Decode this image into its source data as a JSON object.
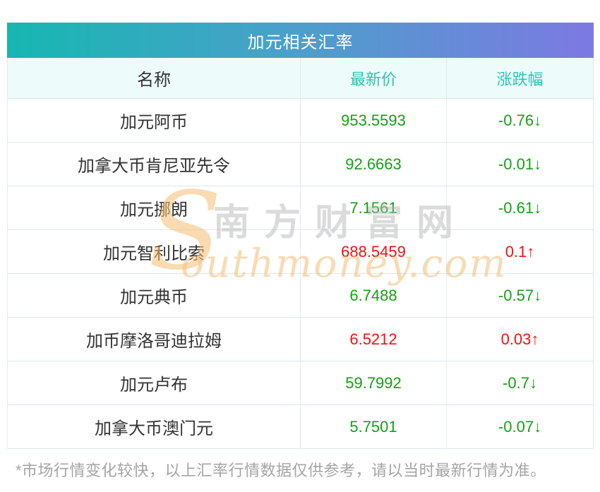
{
  "page": {
    "title": "加元相关汇率",
    "footnote": "*市场行情变化较快，以上汇率行情数据仅供参考，请以当时最新行情为准。"
  },
  "watermark": {
    "s_glyph": "S",
    "cjk_text": "南方财富网",
    "latin_text": "outhmoney.com"
  },
  "colors": {
    "up": "#f90e0e",
    "down": "#15a015",
    "title_gradient_start": "#16b7b1",
    "title_gradient_end": "#7d79e2",
    "header_text": "#2fc3b2",
    "header_bg": "#edfcfa",
    "border": "#dce6f1"
  },
  "table": {
    "columns": [
      "名称",
      "最新价",
      "涨跌幅"
    ],
    "rows": [
      {
        "name": "加元阿币",
        "price": "953.5593",
        "change": "-0.76↓",
        "direction": "down"
      },
      {
        "name": "加拿大币肯尼亚先令",
        "price": "92.6663",
        "change": "-0.01↓",
        "direction": "down"
      },
      {
        "name": "加元挪朗",
        "price": "7.1561",
        "change": "-0.61↓",
        "direction": "down"
      },
      {
        "name": "加元智利比索",
        "price": "688.5459",
        "change": "0.1↑",
        "direction": "up"
      },
      {
        "name": "加元典币",
        "price": "6.7488",
        "change": "-0.57↓",
        "direction": "down"
      },
      {
        "name": "加币摩洛哥迪拉姆",
        "price": "6.5212",
        "change": "0.03↑",
        "direction": "up"
      },
      {
        "name": "加元卢布",
        "price": "59.7992",
        "change": "-0.7↓",
        "direction": "down"
      },
      {
        "name": "加拿大币澳门元",
        "price": "5.7501",
        "change": "-0.07↓",
        "direction": "down"
      }
    ]
  },
  "chart_data": {
    "type": "table",
    "title": "加元相关汇率",
    "columns": [
      "名称",
      "最新价",
      "涨跌幅"
    ],
    "rows": [
      [
        "加元阿币",
        953.5593,
        "-0.76↓"
      ],
      [
        "加拿大币肯尼亚先令",
        92.6663,
        "-0.01↓"
      ],
      [
        "加元挪朗",
        7.1561,
        "-0.61↓"
      ],
      [
        "加元智利比索",
        688.5459,
        "0.1↑"
      ],
      [
        "加元典币",
        6.7488,
        "-0.57↓"
      ],
      [
        "加币摩洛哥迪拉姆",
        6.5212,
        "0.03↑"
      ],
      [
        "加元卢布",
        59.7992,
        "-0.7↓"
      ],
      [
        "加拿大币澳门元",
        5.7501,
        "-0.07↓"
      ]
    ],
    "notes": "green = down, red = up; footnote disclaimer below table"
  }
}
